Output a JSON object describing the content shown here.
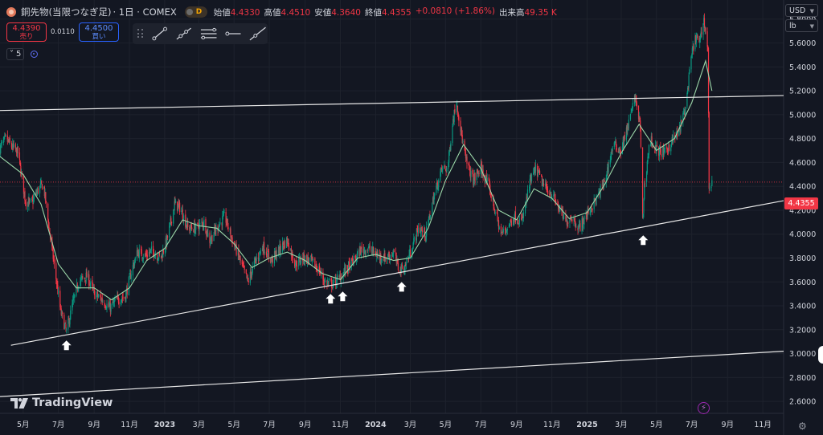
{
  "header": {
    "symbol": "銅先物(当限つなぎ足)",
    "timeframe": "· 1日 · COMEX",
    "badge": "D",
    "ohlc": [
      {
        "key": "始値",
        "value": "4.4330"
      },
      {
        "key": "高値",
        "value": "4.4510"
      },
      {
        "key": "安値",
        "value": "4.3640"
      },
      {
        "key": "終値",
        "value": "4.4355"
      },
      {
        "key": "",
        "value": "+0.0810 (+1.86%)"
      },
      {
        "key": "出来高",
        "value": "49.35 K"
      }
    ]
  },
  "trade": {
    "sell_price": "4.4390",
    "sell_label": "売り",
    "spread": "0.0110",
    "buy_price": "4.4500",
    "buy_label": "買い"
  },
  "indicator": {
    "count": "5",
    "chevron": "˅"
  },
  "currency": "USD",
  "unit": "lb",
  "branding": "TradingView",
  "colors": {
    "up": "#089981",
    "down": "#f23645",
    "ma": "#9bd6a8",
    "trendline": "#e8e8e8",
    "accent": "#2962ff",
    "background": "#131722"
  },
  "icons": [
    "trend-line-icon",
    "ray-icon",
    "parallel-channel-icon",
    "horizontal-ray-icon",
    "extended-line-icon",
    "flash-icon",
    "settings-icon",
    "up-arrow-marker-icon"
  ],
  "chart_data": {
    "type": "candlestick",
    "title": "",
    "last_price": "4.4355",
    "y_axis": {
      "ticks": [
        "2.6000",
        "2.8000",
        "3.0000",
        "3.2000",
        "3.4000",
        "3.6000",
        "3.8000",
        "4.0000",
        "4.2000",
        "4.4000",
        "4.6000",
        "4.8000",
        "5.0000",
        "5.2000",
        "5.4000",
        "5.6000",
        "5.8000"
      ],
      "range": [
        2.5,
        5.96
      ]
    },
    "x_axis": {
      "ticks": [
        {
          "label": "5月",
          "date": "2022-05-01"
        },
        {
          "label": "7月",
          "date": "2022-07-01"
        },
        {
          "label": "9月",
          "date": "2022-09-01"
        },
        {
          "label": "11月",
          "date": "2022-11-01"
        },
        {
          "label": "2023",
          "date": "2023-01-01",
          "bold": true
        },
        {
          "label": "3月",
          "date": "2023-03-01"
        },
        {
          "label": "5月",
          "date": "2023-05-01"
        },
        {
          "label": "7月",
          "date": "2023-07-01"
        },
        {
          "label": "9月",
          "date": "2023-09-01"
        },
        {
          "label": "11月",
          "date": "2023-11-01"
        },
        {
          "label": "2024",
          "date": "2024-01-01",
          "bold": true
        },
        {
          "label": "3月",
          "date": "2024-03-01"
        },
        {
          "label": "5月",
          "date": "2024-05-01"
        },
        {
          "label": "7月",
          "date": "2024-07-01"
        },
        {
          "label": "9月",
          "date": "2024-09-01"
        },
        {
          "label": "11月",
          "date": "2024-11-01"
        },
        {
          "label": "2025",
          "date": "2025-01-01",
          "bold": true
        },
        {
          "label": "3月",
          "date": "2025-03-01"
        },
        {
          "label": "5月",
          "date": "2025-05-01"
        },
        {
          "label": "7月",
          "date": "2025-07-01"
        },
        {
          "label": "9月",
          "date": "2025-09-01"
        },
        {
          "label": "11月",
          "date": "2025-11-01"
        }
      ],
      "range": [
        "2022-03-22",
        "2025-12-07"
      ]
    },
    "price_path": [
      [
        "2022-03-22",
        4.72
      ],
      [
        "2022-04-01",
        4.8
      ],
      [
        "2022-04-10",
        4.74
      ],
      [
        "2022-04-22",
        4.68
      ],
      [
        "2022-05-05",
        4.28
      ],
      [
        "2022-05-15",
        4.25
      ],
      [
        "2022-05-28",
        4.38
      ],
      [
        "2022-06-05",
        4.42
      ],
      [
        "2022-06-15",
        4.05
      ],
      [
        "2022-06-25",
        3.7
      ],
      [
        "2022-07-05",
        3.35
      ],
      [
        "2022-07-15",
        3.18
      ],
      [
        "2022-07-25",
        3.4
      ],
      [
        "2022-08-05",
        3.6
      ],
      [
        "2022-08-20",
        3.65
      ],
      [
        "2022-09-01",
        3.5
      ],
      [
        "2022-09-15",
        3.45
      ],
      [
        "2022-09-28",
        3.38
      ],
      [
        "2022-10-10",
        3.45
      ],
      [
        "2022-10-25",
        3.48
      ],
      [
        "2022-11-05",
        3.7
      ],
      [
        "2022-11-15",
        3.85
      ],
      [
        "2022-11-28",
        3.82
      ],
      [
        "2022-12-10",
        3.86
      ],
      [
        "2022-12-25",
        3.8
      ],
      [
        "2023-01-05",
        3.95
      ],
      [
        "2023-01-18",
        4.25
      ],
      [
        "2023-01-28",
        4.22
      ],
      [
        "2023-02-10",
        4.05
      ],
      [
        "2023-02-25",
        4.05
      ],
      [
        "2023-03-10",
        4.1
      ],
      [
        "2023-03-20",
        3.95
      ],
      [
        "2023-04-01",
        4.05
      ],
      [
        "2023-04-15",
        4.15
      ],
      [
        "2023-04-28",
        3.95
      ],
      [
        "2023-05-10",
        3.8
      ],
      [
        "2023-05-25",
        3.6
      ],
      [
        "2023-06-05",
        3.75
      ],
      [
        "2023-06-20",
        3.9
      ],
      [
        "2023-07-05",
        3.78
      ],
      [
        "2023-07-20",
        3.88
      ],
      [
        "2023-08-01",
        3.95
      ],
      [
        "2023-08-15",
        3.75
      ],
      [
        "2023-08-28",
        3.8
      ],
      [
        "2023-09-10",
        3.78
      ],
      [
        "2023-09-25",
        3.7
      ],
      [
        "2023-10-05",
        3.6
      ],
      [
        "2023-10-18",
        3.58
      ],
      [
        "2023-10-30",
        3.63
      ],
      [
        "2023-11-10",
        3.7
      ],
      [
        "2023-11-25",
        3.78
      ],
      [
        "2023-12-05",
        3.86
      ],
      [
        "2023-12-20",
        3.88
      ],
      [
        "2024-01-05",
        3.82
      ],
      [
        "2024-01-20",
        3.8
      ],
      [
        "2024-02-01",
        3.85
      ],
      [
        "2024-02-10",
        3.7
      ],
      [
        "2024-02-20",
        3.72
      ],
      [
        "2024-03-01",
        3.85
      ],
      [
        "2024-03-15",
        4.05
      ],
      [
        "2024-03-28",
        4.0
      ],
      [
        "2024-04-10",
        4.3
      ],
      [
        "2024-04-25",
        4.55
      ],
      [
        "2024-05-05",
        4.55
      ],
      [
        "2024-05-12",
        4.9
      ],
      [
        "2024-05-20",
        5.12
      ],
      [
        "2024-05-28",
        4.85
      ],
      [
        "2024-06-05",
        4.62
      ],
      [
        "2024-06-18",
        4.45
      ],
      [
        "2024-07-01",
        4.55
      ],
      [
        "2024-07-15",
        4.4
      ],
      [
        "2024-07-28",
        4.15
      ],
      [
        "2024-08-05",
        4.0
      ],
      [
        "2024-08-15",
        4.05
      ],
      [
        "2024-08-28",
        4.15
      ],
      [
        "2024-09-10",
        4.1
      ],
      [
        "2024-09-25",
        4.45
      ],
      [
        "2024-10-05",
        4.55
      ],
      [
        "2024-10-18",
        4.4
      ],
      [
        "2024-10-30",
        4.35
      ],
      [
        "2024-11-10",
        4.25
      ],
      [
        "2024-11-25",
        4.1
      ],
      [
        "2024-12-05",
        4.15
      ],
      [
        "2024-12-18",
        4.05
      ],
      [
        "2025-01-05",
        4.2
      ],
      [
        "2025-01-18",
        4.3
      ],
      [
        "2025-02-01",
        4.45
      ],
      [
        "2025-02-15",
        4.75
      ],
      [
        "2025-03-01",
        4.7
      ],
      [
        "2025-03-15",
        4.95
      ],
      [
        "2025-03-25",
        5.15
      ],
      [
        "2025-04-03",
        4.9
      ],
      [
        "2025-04-07",
        4.1
      ],
      [
        "2025-04-10",
        4.4
      ],
      [
        "2025-04-20",
        4.8
      ],
      [
        "2025-05-01",
        4.7
      ],
      [
        "2025-05-15",
        4.68
      ],
      [
        "2025-05-28",
        4.78
      ],
      [
        "2025-06-08",
        4.85
      ],
      [
        "2025-06-20",
        5.05
      ],
      [
        "2025-07-01",
        5.5
      ],
      [
        "2025-07-08",
        5.65
      ],
      [
        "2025-07-15",
        5.6
      ],
      [
        "2025-07-22",
        5.8
      ],
      [
        "2025-07-29",
        5.55
      ],
      [
        "2025-07-31",
        4.4
      ],
      [
        "2025-08-05",
        4.4355
      ]
    ],
    "moving_average": [
      [
        "2022-03-22",
        4.65
      ],
      [
        "2022-05-01",
        4.5
      ],
      [
        "2022-06-01",
        4.25
      ],
      [
        "2022-07-01",
        3.75
      ],
      [
        "2022-08-01",
        3.55
      ],
      [
        "2022-09-01",
        3.55
      ],
      [
        "2022-10-01",
        3.45
      ],
      [
        "2022-11-01",
        3.55
      ],
      [
        "2022-12-01",
        3.78
      ],
      [
        "2023-01-01",
        3.88
      ],
      [
        "2023-02-01",
        4.12
      ],
      [
        "2023-03-01",
        4.07
      ],
      [
        "2023-04-01",
        4.05
      ],
      [
        "2023-05-01",
        3.92
      ],
      [
        "2023-06-01",
        3.72
      ],
      [
        "2023-07-01",
        3.8
      ],
      [
        "2023-08-01",
        3.85
      ],
      [
        "2023-09-01",
        3.78
      ],
      [
        "2023-10-01",
        3.67
      ],
      [
        "2023-11-01",
        3.62
      ],
      [
        "2023-12-01",
        3.8
      ],
      [
        "2024-01-01",
        3.83
      ],
      [
        "2024-02-01",
        3.78
      ],
      [
        "2024-03-01",
        3.8
      ],
      [
        "2024-04-01",
        4.05
      ],
      [
        "2024-05-01",
        4.45
      ],
      [
        "2024-06-01",
        4.75
      ],
      [
        "2024-07-01",
        4.55
      ],
      [
        "2024-08-01",
        4.2
      ],
      [
        "2024-09-01",
        4.12
      ],
      [
        "2024-10-01",
        4.38
      ],
      [
        "2024-11-01",
        4.3
      ],
      [
        "2024-12-01",
        4.13
      ],
      [
        "2025-01-01",
        4.18
      ],
      [
        "2025-02-01",
        4.42
      ],
      [
        "2025-03-01",
        4.68
      ],
      [
        "2025-04-01",
        4.92
      ],
      [
        "2025-05-01",
        4.7
      ],
      [
        "2025-06-01",
        4.8
      ],
      [
        "2025-07-01",
        5.1
      ],
      [
        "2025-07-25",
        5.45
      ],
      [
        "2025-08-05",
        5.2
      ]
    ],
    "trendlines": [
      {
        "from": [
          "2022-03-22",
          5.035
        ],
        "to": [
          "2025-12-07",
          5.16
        ]
      },
      {
        "from": [
          "2022-03-22",
          2.64
        ],
        "to": [
          "2025-12-07",
          3.02
        ]
      },
      {
        "from": [
          "2022-04-10",
          3.07
        ],
        "to": [
          "2025-12-07",
          4.28
        ]
      }
    ],
    "arrows": [
      {
        "date": "2022-07-15",
        "price": 3.15
      },
      {
        "date": "2023-10-15",
        "price": 3.54
      },
      {
        "date": "2023-11-05",
        "price": 3.56
      },
      {
        "date": "2024-02-15",
        "price": 3.64
      },
      {
        "date": "2025-04-08",
        "price": 4.03
      }
    ]
  }
}
